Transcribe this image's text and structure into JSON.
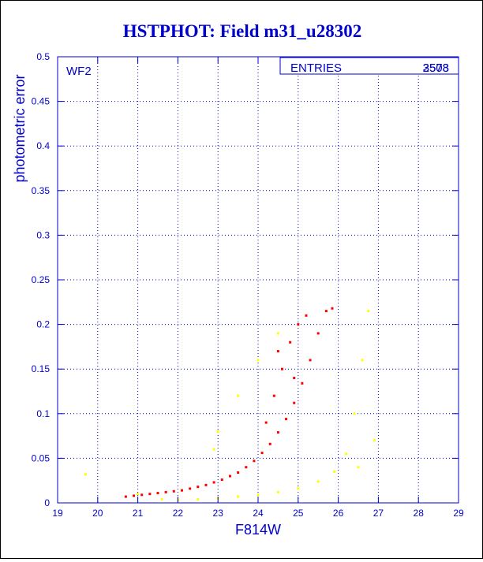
{
  "chart_data": {
    "type": "scatter",
    "title": "HSTPHOT: Field m31_u28302",
    "xlabel": "F814W",
    "ylabel": "photometric error",
    "panel_label": "WF2",
    "xlim": [
      19,
      29
    ],
    "ylim": [
      0,
      0.5
    ],
    "x_ticks": [
      "19",
      "20",
      "21",
      "22",
      "23",
      "24",
      "25",
      "26",
      "27",
      "28",
      "29"
    ],
    "y_ticks": [
      "0",
      "0.05",
      "0.1",
      "0.15",
      "0.2",
      "0.25",
      "0.3",
      "0.35",
      "0.4",
      "0.45",
      "0.5"
    ],
    "grid": true,
    "stats_box": {
      "label": "ENTRIES",
      "values": [
        "2508",
        "3573"
      ]
    },
    "colors": {
      "title": "#0000cc",
      "axis": "#0000cc",
      "grid": "#0000cc",
      "series_a": "#ff0000",
      "series_b": "#ffff00"
    },
    "series": [
      {
        "color": "#ff0000",
        "values": [
          [
            20.7,
            0.007
          ],
          [
            20.9,
            0.008
          ],
          [
            21.1,
            0.009
          ],
          [
            21.3,
            0.01
          ],
          [
            21.5,
            0.011
          ],
          [
            21.7,
            0.012
          ],
          [
            21.9,
            0.013
          ],
          [
            22.1,
            0.014
          ],
          [
            22.3,
            0.016
          ],
          [
            22.5,
            0.018
          ],
          [
            22.7,
            0.02
          ],
          [
            22.9,
            0.023
          ],
          [
            23.1,
            0.026
          ],
          [
            23.3,
            0.03
          ],
          [
            23.5,
            0.034
          ],
          [
            23.7,
            0.04
          ],
          [
            23.9,
            0.047
          ],
          [
            24.1,
            0.056
          ],
          [
            24.3,
            0.066
          ],
          [
            24.5,
            0.079
          ],
          [
            24.7,
            0.094
          ],
          [
            24.9,
            0.112
          ],
          [
            25.1,
            0.134
          ],
          [
            25.3,
            0.16
          ],
          [
            25.5,
            0.19
          ],
          [
            25.7,
            0.215
          ],
          [
            25.85,
            0.218
          ],
          [
            24.2,
            0.09
          ],
          [
            24.4,
            0.12
          ],
          [
            24.6,
            0.15
          ],
          [
            24.8,
            0.18
          ],
          [
            25.0,
            0.2
          ],
          [
            24.5,
            0.17
          ],
          [
            24.9,
            0.14
          ],
          [
            25.2,
            0.21
          ]
        ]
      },
      {
        "color": "#ffff00",
        "values": [
          [
            19.7,
            0.032
          ],
          [
            21.0,
            0.01
          ],
          [
            21.6,
            0.004
          ],
          [
            22.0,
            0.003
          ],
          [
            22.5,
            0.004
          ],
          [
            23.0,
            0.005
          ],
          [
            23.5,
            0.007
          ],
          [
            24.0,
            0.009
          ],
          [
            24.5,
            0.012
          ],
          [
            25.0,
            0.016
          ],
          [
            25.5,
            0.024
          ],
          [
            25.9,
            0.035
          ],
          [
            26.2,
            0.055
          ],
          [
            26.4,
            0.1
          ],
          [
            26.6,
            0.16
          ],
          [
            26.75,
            0.215
          ],
          [
            23.0,
            0.08
          ],
          [
            23.5,
            0.12
          ],
          [
            24.0,
            0.16
          ],
          [
            24.5,
            0.19
          ],
          [
            22.9,
            0.06
          ],
          [
            26.9,
            0.07
          ],
          [
            26.5,
            0.04
          ]
        ]
      }
    ]
  }
}
